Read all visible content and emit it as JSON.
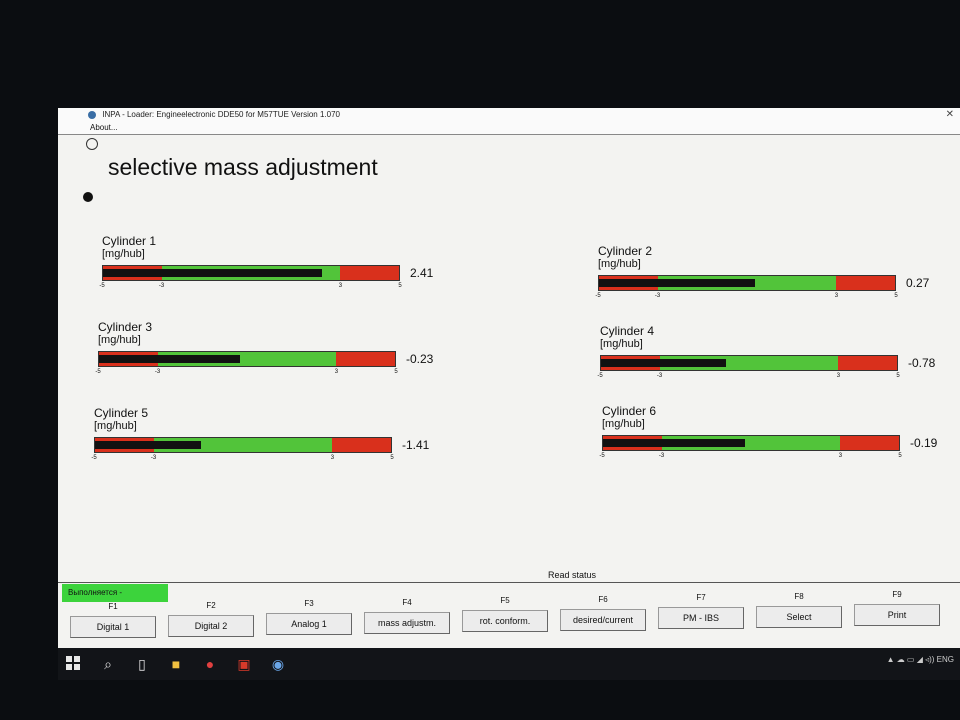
{
  "window": {
    "title": "INPA - Loader: Engineelectronic DDE50 for M57TUE Version 1.070",
    "close_glyph": "✕"
  },
  "menu": {
    "about": "About..."
  },
  "page": {
    "heading": "selective mass adjustment"
  },
  "scale": {
    "min": -5,
    "max": 5,
    "tick_labels": [
      "-5",
      "-3",
      "3",
      "5"
    ]
  },
  "cylinders": [
    {
      "name": "Cylinder 1",
      "unit": "[mg/hub]",
      "value": "2.41",
      "level": 2.41
    },
    {
      "name": "Cylinder 2",
      "unit": "[mg/hub]",
      "value": "0.27",
      "level": 0.27
    },
    {
      "name": "Cylinder 3",
      "unit": "[mg/hub]",
      "value": "-0.23",
      "level": -0.23
    },
    {
      "name": "Cylinder 4",
      "unit": "[mg/hub]",
      "value": "-0.78",
      "level": -0.78
    },
    {
      "name": "Cylinder 5",
      "unit": "[mg/hub]",
      "value": "-1.41",
      "level": -1.41
    },
    {
      "name": "Cylinder 6",
      "unit": "[mg/hub]",
      "value": "-0.19",
      "level": -0.19
    }
  ],
  "status": {
    "read_status": "Read status",
    "running": "Выполняется -"
  },
  "function_keys": [
    {
      "key": "F1",
      "label": "Digital 1"
    },
    {
      "key": "F2",
      "label": "Digital 2"
    },
    {
      "key": "F3",
      "label": "Analog 1"
    },
    {
      "key": "F4",
      "label": "mass adjustm."
    },
    {
      "key": "F5",
      "label": "rot. conform."
    },
    {
      "key": "F6",
      "label": "desired/current"
    },
    {
      "key": "F7",
      "label": "PM - IBS"
    },
    {
      "key": "F8",
      "label": "Select"
    },
    {
      "key": "F9",
      "label": "Print"
    }
  ],
  "taskbar": {
    "tray_text": "ENG",
    "icons": [
      "windows-start-icon",
      "search-icon",
      "task-view-icon",
      "file-explorer-icon",
      "chrome-icon",
      "app-icon",
      "bmw-icon"
    ]
  },
  "colors": {
    "green": "#52c43a",
    "red": "#d9301c",
    "running": "#3cd33c"
  }
}
